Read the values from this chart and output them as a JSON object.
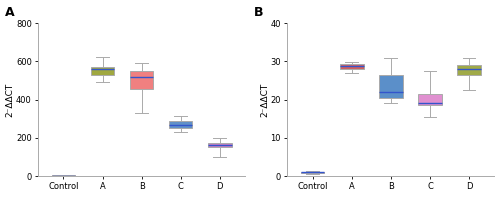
{
  "panel_A": {
    "title": "A",
    "ylim": [
      0,
      800
    ],
    "yticks": [
      0,
      200,
      400,
      600,
      800
    ],
    "categories": [
      "Control",
      "A",
      "B",
      "C",
      "D"
    ],
    "boxes": [
      {
        "whislo": 1,
        "q1": 2,
        "med": 3,
        "q3": 5,
        "whishi": 7,
        "color": "#c04040"
      },
      {
        "whislo": 490,
        "q1": 530,
        "med": 558,
        "q3": 572,
        "whishi": 625,
        "color": "#a0a840"
      },
      {
        "whislo": 330,
        "q1": 455,
        "med": 520,
        "q3": 548,
        "whishi": 590,
        "color": "#f08080"
      },
      {
        "whislo": 232,
        "q1": 252,
        "med": 268,
        "q3": 288,
        "whishi": 315,
        "color": "#6090c8"
      },
      {
        "whislo": 100,
        "q1": 152,
        "med": 164,
        "q3": 175,
        "whishi": 198,
        "color": "#d080c0"
      }
    ]
  },
  "panel_B": {
    "title": "B",
    "ylim": [
      0,
      40
    ],
    "yticks": [
      0,
      10,
      20,
      30,
      40
    ],
    "categories": [
      "Control",
      "A",
      "B",
      "C",
      "D"
    ],
    "boxes": [
      {
        "whislo": 0.6,
        "q1": 0.8,
        "med": 1.0,
        "q3": 1.1,
        "whishi": 1.4,
        "color": "#8B1010"
      },
      {
        "whislo": 27.0,
        "q1": 28.0,
        "med": 28.8,
        "q3": 29.2,
        "whishi": 29.8,
        "color": "#d06060"
      },
      {
        "whislo": 19.0,
        "q1": 20.5,
        "med": 22.0,
        "q3": 26.5,
        "whishi": 31.0,
        "color": "#5b8fc9"
      },
      {
        "whislo": 15.5,
        "q1": 18.5,
        "med": 19.2,
        "q3": 21.5,
        "whishi": 27.5,
        "color": "#e090d0"
      },
      {
        "whislo": 22.5,
        "q1": 26.5,
        "med": 28.0,
        "q3": 29.0,
        "whishi": 31.0,
        "color": "#a0aa48"
      }
    ]
  },
  "ylabel": "2⁻ΔΔCT",
  "background_color": "#ffffff",
  "box_width": 0.6,
  "whisker_color": "#aaaaaa",
  "median_color": "#3355cc",
  "edge_color": "#aaaaaa",
  "figsize": [
    5.0,
    1.97
  ],
  "dpi": 100
}
